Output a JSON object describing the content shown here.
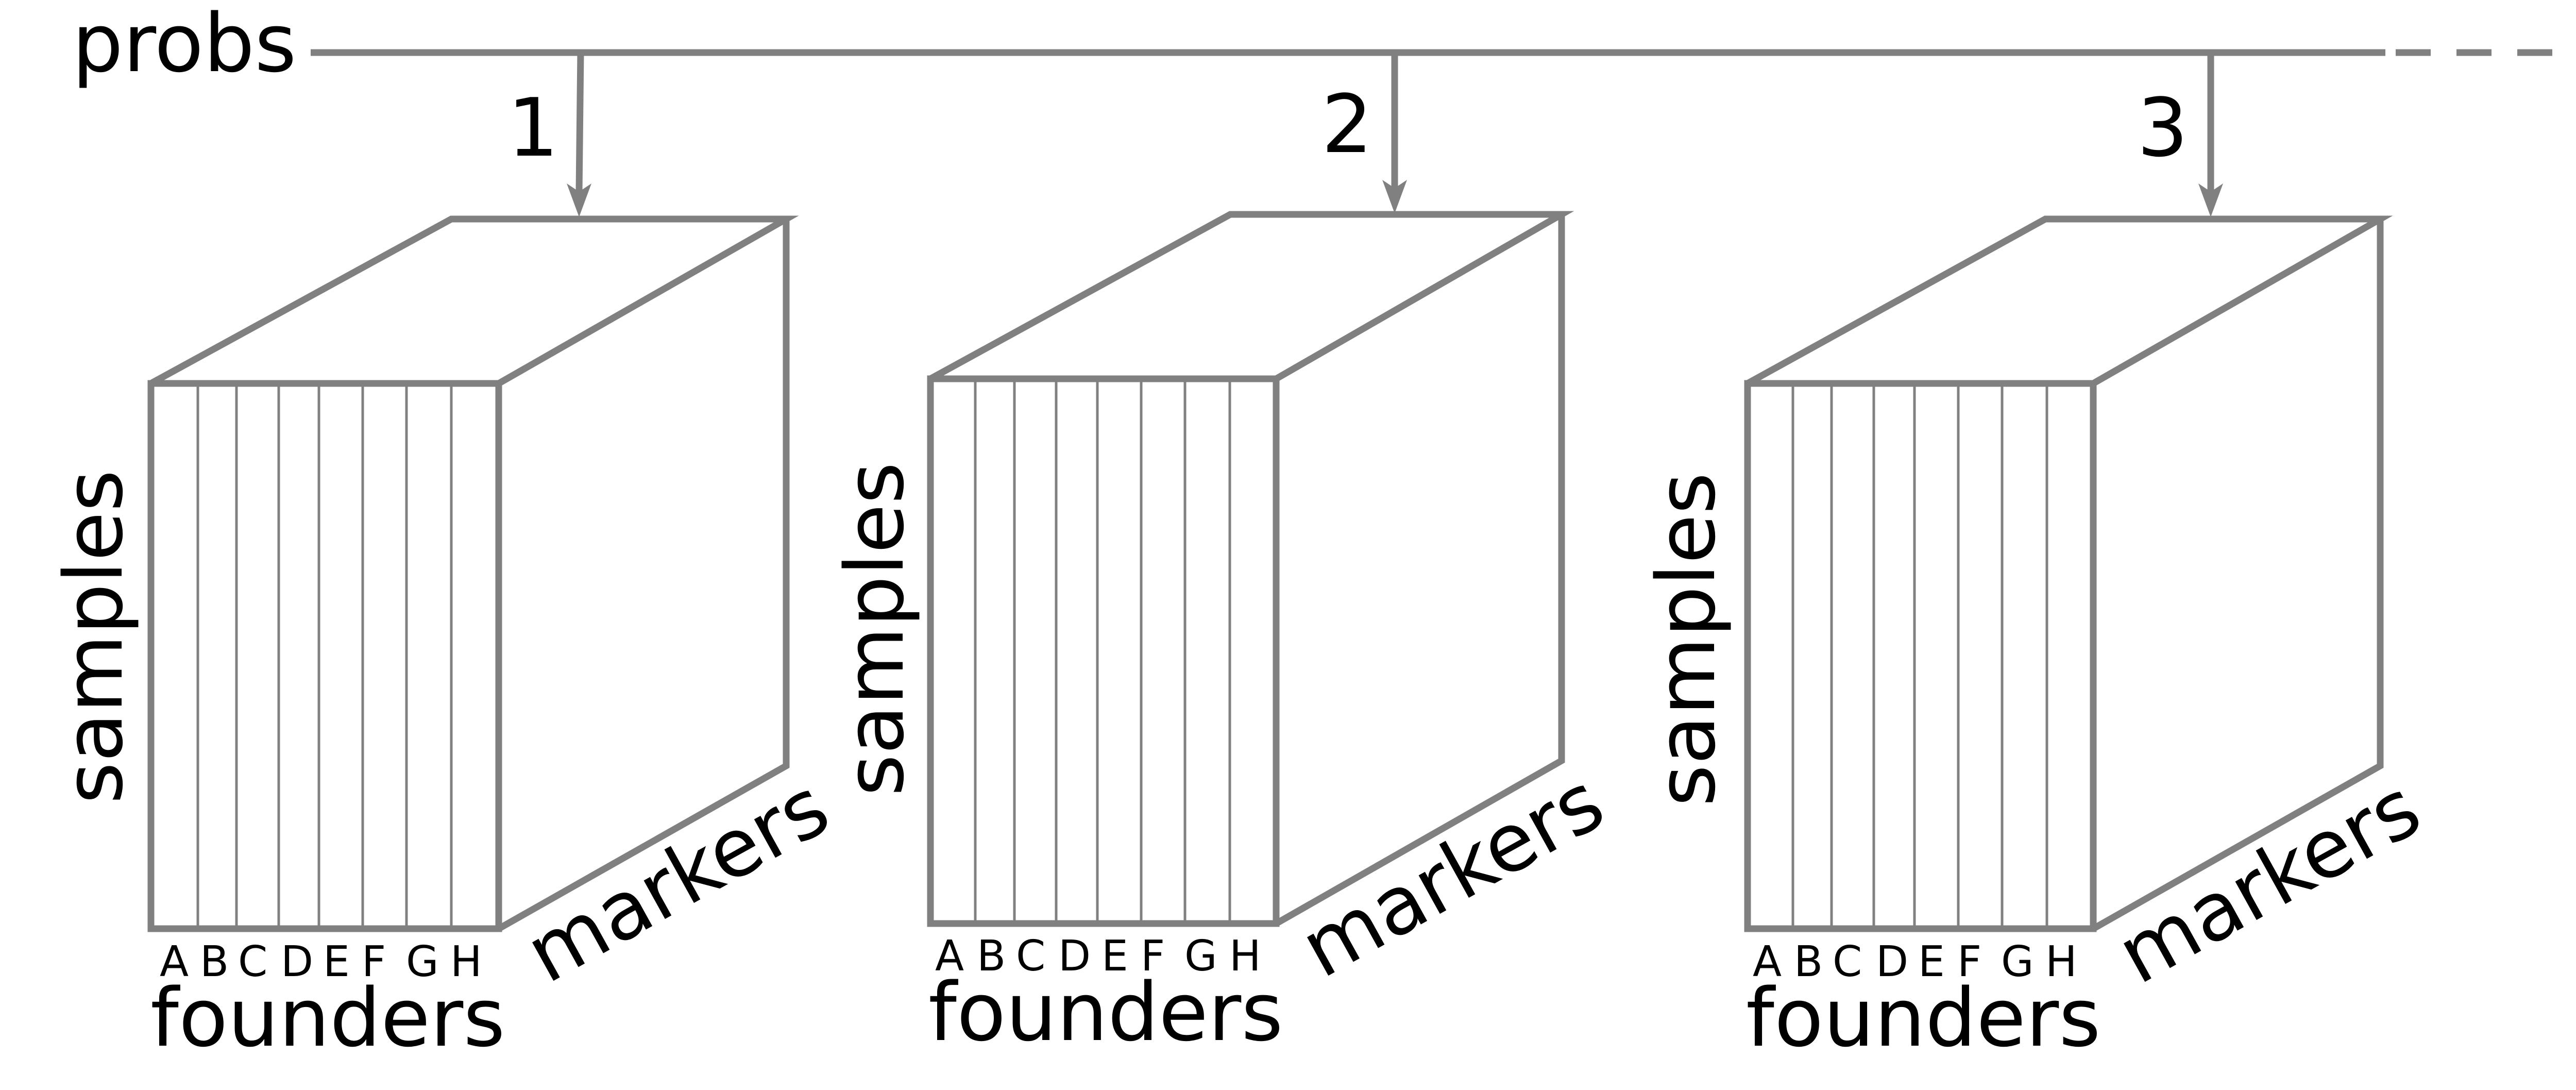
{
  "main_label": "probs",
  "axis_labels": {
    "samples": "samples",
    "markers": "markers",
    "founders": "founders"
  },
  "founder_letters": [
    "A",
    "B",
    "C",
    "D",
    "E",
    "F",
    "G",
    "H"
  ],
  "arrays": [
    {
      "index_label": "1"
    },
    {
      "index_label": "2"
    },
    {
      "index_label": "3"
    }
  ],
  "colors": {
    "stroke": "#808080",
    "text": "#000000",
    "background": "#ffffff"
  }
}
